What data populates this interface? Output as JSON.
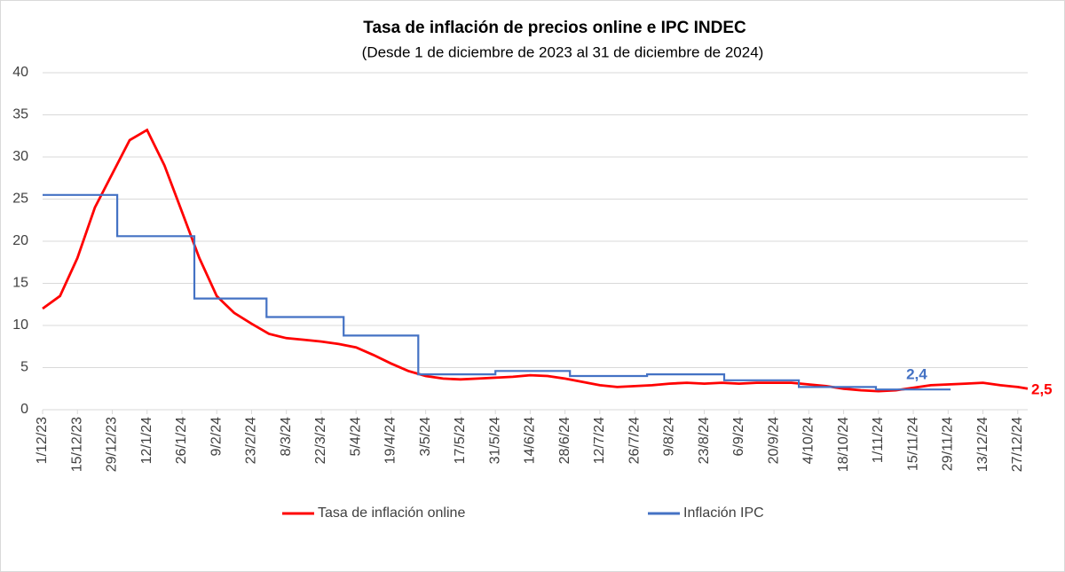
{
  "chart_data": {
    "type": "line",
    "title": "Tasa de inflación de precios online e IPC INDEC",
    "subtitle": "(Desde 1 de diciembre de 2023 al 31 de diciembre de 2024)",
    "ylim": [
      0,
      40
    ],
    "yticks": [
      0,
      5,
      10,
      15,
      20,
      25,
      30,
      35,
      40
    ],
    "grid": true,
    "xlim": [
      "1/12/23",
      "31/12/24"
    ],
    "xticks": [
      "1/12/23",
      "15/12/23",
      "29/12/23",
      "12/1/24",
      "26/1/24",
      "9/2/24",
      "23/2/24",
      "8/3/24",
      "22/3/24",
      "5/4/24",
      "19/4/24",
      "3/5/24",
      "17/5/24",
      "31/5/24",
      "14/6/24",
      "28/6/24",
      "12/7/24",
      "26/7/24",
      "9/8/24",
      "23/8/24",
      "6/9/24",
      "20/9/24",
      "4/10/24",
      "18/10/24",
      "1/11/24",
      "15/11/24",
      "29/11/24",
      "13/12/24",
      "27/12/24"
    ],
    "series": [
      {
        "name": "Tasa de inflación online",
        "color": "#ff0000",
        "step": false,
        "end_label": "2,5",
        "x": [
          "1/12/23",
          "8/12/23",
          "15/12/23",
          "22/12/23",
          "29/12/23",
          "5/1/24",
          "12/1/24",
          "19/1/24",
          "26/1/24",
          "2/2/24",
          "9/2/24",
          "16/2/24",
          "23/2/24",
          "1/3/24",
          "8/3/24",
          "15/3/24",
          "22/3/24",
          "29/3/24",
          "5/4/24",
          "12/4/24",
          "19/4/24",
          "26/4/24",
          "3/5/24",
          "10/5/24",
          "17/5/24",
          "24/5/24",
          "31/5/24",
          "7/6/24",
          "14/6/24",
          "21/6/24",
          "28/6/24",
          "5/7/24",
          "12/7/24",
          "19/7/24",
          "26/7/24",
          "2/8/24",
          "9/8/24",
          "16/8/24",
          "23/8/24",
          "30/8/24",
          "6/9/24",
          "13/9/24",
          "20/9/24",
          "27/9/24",
          "4/10/24",
          "11/10/24",
          "18/10/24",
          "25/10/24",
          "1/11/24",
          "8/11/24",
          "15/11/24",
          "22/11/24",
          "29/11/24",
          "6/12/24",
          "13/12/24",
          "20/12/24",
          "27/12/24",
          "31/12/24"
        ],
        "values": [
          12.0,
          13.5,
          18,
          24,
          28,
          32,
          33.2,
          29,
          23.5,
          18,
          13.5,
          11.5,
          10.2,
          9.0,
          8.5,
          8.3,
          8.1,
          7.8,
          7.4,
          6.5,
          5.5,
          4.6,
          4.0,
          3.7,
          3.6,
          3.7,
          3.8,
          3.9,
          4.1,
          4.0,
          3.7,
          3.3,
          2.9,
          2.7,
          2.8,
          2.9,
          3.1,
          3.2,
          3.1,
          3.2,
          3.1,
          3.2,
          3.2,
          3.2,
          3.0,
          2.8,
          2.5,
          2.3,
          2.2,
          2.3,
          2.6,
          2.9,
          3.0,
          3.1,
          3.2,
          2.9,
          2.7,
          2.5
        ]
      },
      {
        "name": "Inflación IPC",
        "color": "#4472c4",
        "step": true,
        "end_label": "2,4",
        "x": [
          "1/12/23",
          "31/12/23",
          "31/1/24",
          "29/2/24",
          "31/3/24",
          "30/4/24",
          "31/5/24",
          "30/6/24",
          "31/7/24",
          "31/8/24",
          "30/9/24",
          "31/10/24",
          "30/11/24"
        ],
        "values": [
          25.5,
          20.6,
          13.2,
          11.0,
          8.8,
          4.2,
          4.6,
          4.0,
          4.2,
          3.5,
          2.7,
          2.4,
          2.4
        ]
      }
    ]
  }
}
